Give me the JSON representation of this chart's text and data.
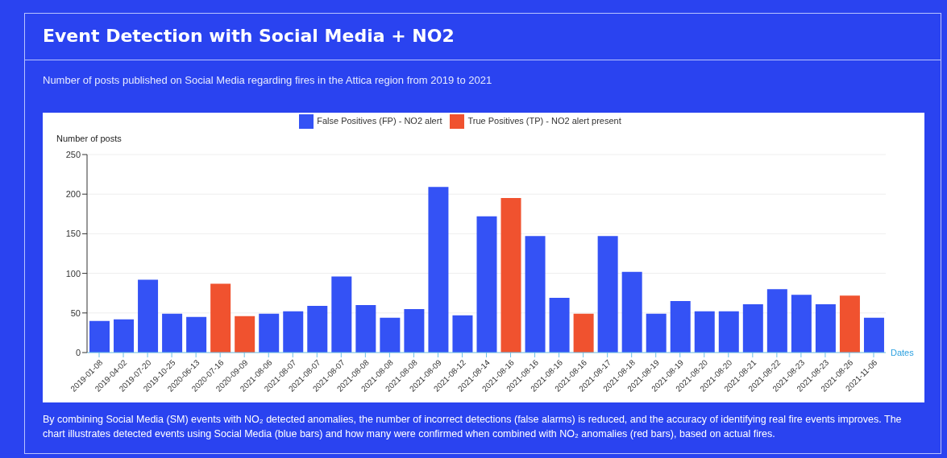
{
  "chart_data": {
    "type": "bar",
    "title": "Event Detection with Social Media + NO2",
    "subtitle": "Number of posts published on Social Media regarding fires in the Attica region from 2019 to 2021",
    "xlabel": "Dates",
    "ylabel": "Number of posts",
    "categories": [
      "2019-01-08",
      "2019-04-02",
      "2019-07-20",
      "2019-10-25",
      "2020-06-13",
      "2020-07-16",
      "2020-09-09",
      "2021-08-06",
      "2021-08-07",
      "2021-08-07",
      "2021-08-07",
      "2021-08-08",
      "2021-08-08",
      "2021-08-08",
      "2021-08-09",
      "2021-08-12",
      "2021-08-14",
      "2021-08-16",
      "2021-08-16",
      "2021-08-16",
      "2021-08-16",
      "2021-08-17",
      "2021-08-18",
      "2021-08-19",
      "2021-08-19",
      "2021-08-20",
      "2021-08-20",
      "2021-08-21",
      "2021-08-22",
      "2021-08-23",
      "2021-08-23",
      "2021-08-26",
      "2021-11-06"
    ],
    "series": [
      {
        "name": "True Positives (TP) - NO2 alert present",
        "color": "#f0522f",
        "values": [
          null,
          null,
          null,
          null,
          null,
          87,
          46,
          null,
          null,
          null,
          null,
          null,
          null,
          null,
          null,
          null,
          null,
          195,
          null,
          null,
          49,
          null,
          null,
          null,
          null,
          null,
          null,
          null,
          null,
          null,
          null,
          72,
          null
        ]
      },
      {
        "name": "False Positives (FP) - NO2 alert",
        "color": "#3452f5",
        "values": [
          40,
          42,
          92,
          49,
          45,
          null,
          null,
          49,
          52,
          59,
          96,
          60,
          44,
          55,
          209,
          47,
          172,
          null,
          147,
          69,
          null,
          147,
          102,
          49,
          65,
          52,
          52,
          61,
          80,
          73,
          61,
          null,
          44
        ]
      }
    ],
    "stacked": true,
    "ylim": [
      0,
      250
    ],
    "yticks": [
      0,
      50,
      100,
      150,
      200,
      250
    ],
    "grid": "y",
    "legend": "top",
    "annotations": [
      "By combining Social Media (SM) events with NO₂ detected anomalies, the number of incorrect detections (false alarms) is reduced, and the accuracy of identifying real fire events improves. The chart illustrates detected events using Social Media (blue bars) and how many were confirmed when combined with NO₂ anomalies (red bars), based on actual fires."
    ]
  }
}
